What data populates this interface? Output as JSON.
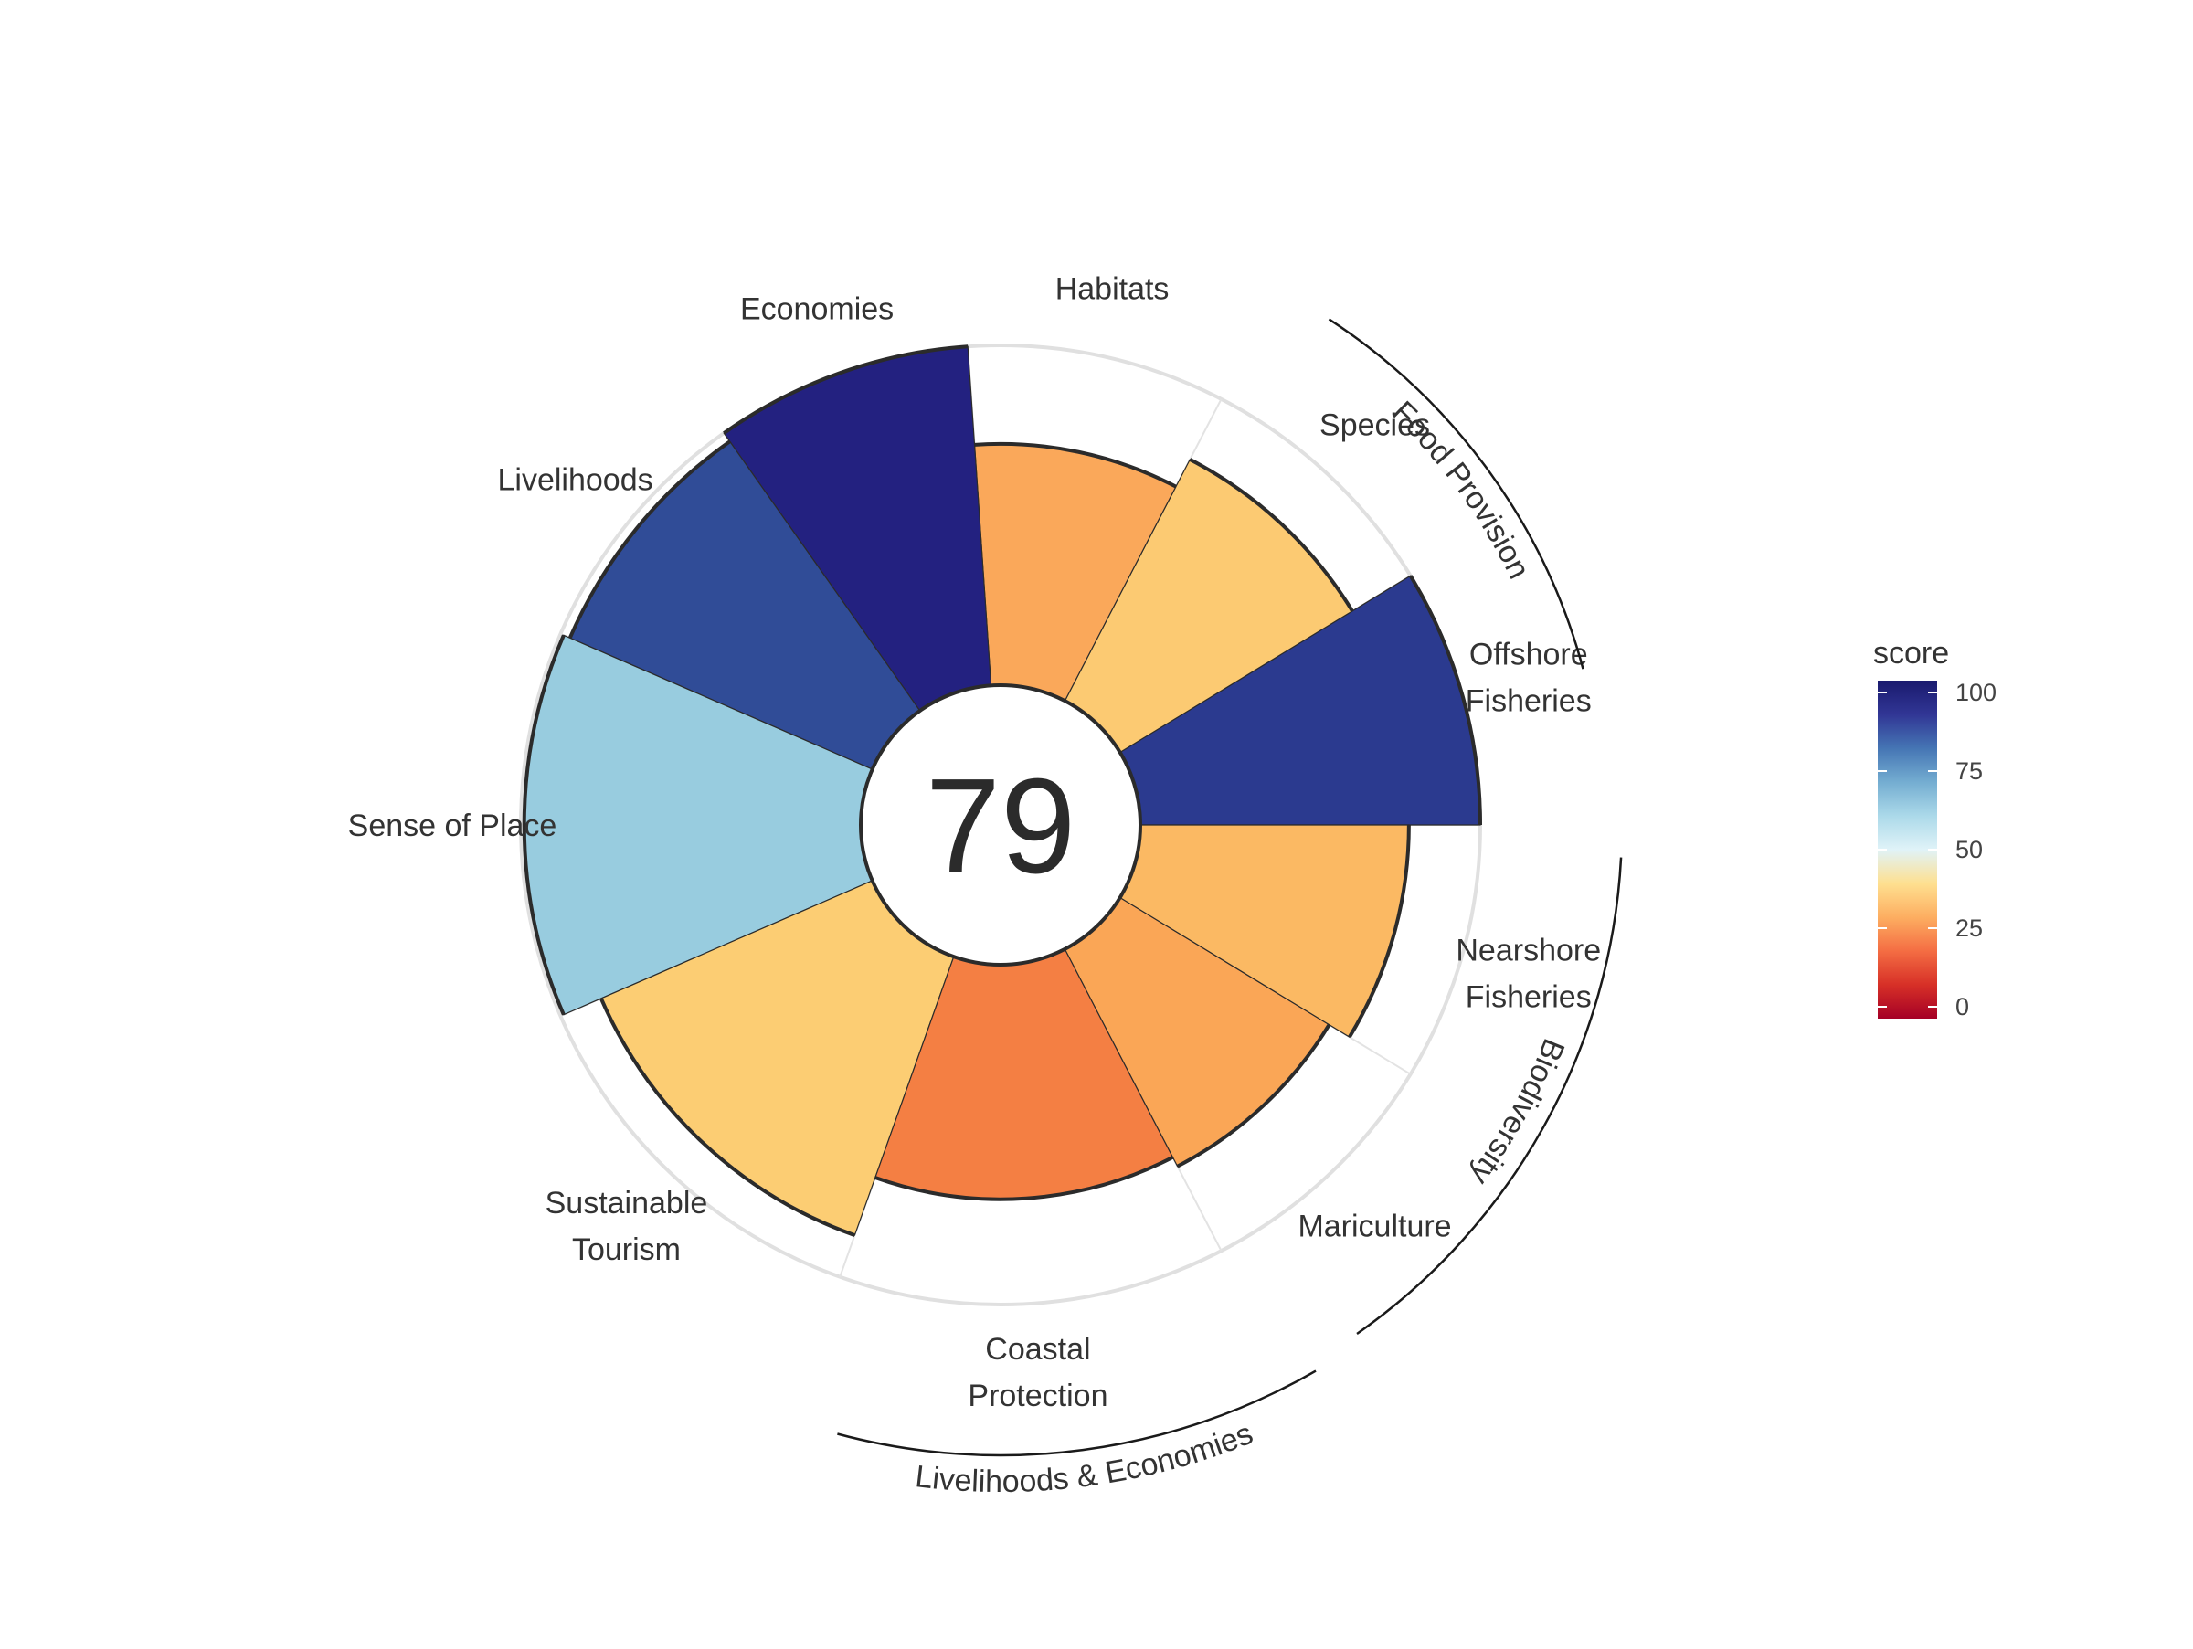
{
  "chart_data": {
    "type": "flower",
    "center_score": "79",
    "r_range": [
      0,
      100
    ],
    "petals": [
      {
        "label": [
          "Offshore",
          "Fisheries"
        ],
        "score": 100,
        "weight": 1.0,
        "color": "#2b3a8f"
      },
      {
        "label": [
          "Species"
        ],
        "score": 80,
        "weight": 1.0,
        "color": "#fcca72"
      },
      {
        "label": [
          "Habitats"
        ],
        "score": 71,
        "weight": 1.0,
        "color": "#faa85a"
      },
      {
        "label": [
          "Economies"
        ],
        "score": 100,
        "weight": 1.0,
        "color": "#232180"
      },
      {
        "label": [
          "Livelihoods"
        ],
        "score": 97,
        "weight": 1.0,
        "color": "#304c97"
      },
      {
        "label": [
          "Sense of Place"
        ],
        "score": 99,
        "weight": 1.5,
        "color": "#98ccdf"
      },
      {
        "label": [
          "Sustainable",
          "Tourism"
        ],
        "score": 87,
        "weight": 1.5,
        "color": "#fccd73"
      },
      {
        "label": [
          "Coastal",
          "Protection"
        ],
        "score": 69,
        "weight": 1.5,
        "color": "#f47f43"
      },
      {
        "label": [
          "Mariculture"
        ],
        "score": 72,
        "weight": 1.0,
        "color": "#faa656"
      },
      {
        "label": [
          "Nearshore",
          "Fisheries"
        ],
        "score": 79,
        "weight": 1.0,
        "color": "#fbb963"
      }
    ],
    "groups": [
      {
        "label": "Food Provision"
      },
      {
        "label": "Biodiversity"
      },
      {
        "label": "Livelihoods & Economies"
      }
    ],
    "legend": {
      "title": "score",
      "ticks": [
        "0",
        "25",
        "50",
        "75",
        "100"
      ],
      "colors": [
        "#a50026",
        "#d73027",
        "#f46d43",
        "#fdae61",
        "#fee090",
        "#e0f3f8",
        "#abd9e9",
        "#74add1",
        "#4575b4",
        "#313695",
        "#1a1a6e"
      ]
    }
  }
}
